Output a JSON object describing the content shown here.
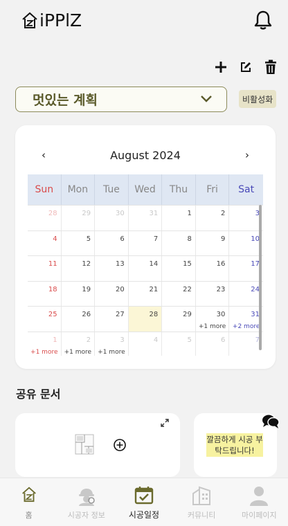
{
  "header": {
    "logo_text": "iPPlZ",
    "logo_icon": "house-logo-icon",
    "notification_icon": "bell-icon"
  },
  "toolbar": {
    "add_icon": "plus-icon",
    "edit_icon": "edit-icon",
    "delete_icon": "trash-icon"
  },
  "plan": {
    "selected": "멋있는 계획",
    "deactivate_label": "비활성화"
  },
  "calendar": {
    "month_label": "August 2024",
    "prev": "‹",
    "next": "›",
    "weekdays": [
      "Sun",
      "Mon",
      "Tue",
      "Wed",
      "Thu",
      "Fri",
      "Sat"
    ],
    "weeks": [
      [
        {
          "d": "28",
          "o": true
        },
        {
          "d": "29",
          "o": true
        },
        {
          "d": "30",
          "o": true
        },
        {
          "d": "31",
          "o": true
        },
        {
          "d": "1"
        },
        {
          "d": "2"
        },
        {
          "d": "3"
        }
      ],
      [
        {
          "d": "4"
        },
        {
          "d": "5"
        },
        {
          "d": "6"
        },
        {
          "d": "7"
        },
        {
          "d": "8"
        },
        {
          "d": "9"
        },
        {
          "d": "10"
        }
      ],
      [
        {
          "d": "11"
        },
        {
          "d": "12"
        },
        {
          "d": "13"
        },
        {
          "d": "14"
        },
        {
          "d": "15"
        },
        {
          "d": "16"
        },
        {
          "d": "17"
        }
      ],
      [
        {
          "d": "18"
        },
        {
          "d": "19"
        },
        {
          "d": "20"
        },
        {
          "d": "21"
        },
        {
          "d": "22"
        },
        {
          "d": "23"
        },
        {
          "d": "24"
        }
      ],
      [
        {
          "d": "25"
        },
        {
          "d": "26"
        },
        {
          "d": "27"
        },
        {
          "d": "28",
          "today": true
        },
        {
          "d": "29"
        },
        {
          "d": "30",
          "more": "+1 more"
        },
        {
          "d": "31",
          "more": "+2 more"
        }
      ],
      [
        {
          "d": "1",
          "o": true,
          "more": "+1 more"
        },
        {
          "d": "2",
          "o": true,
          "more": "+1 more"
        },
        {
          "d": "3",
          "o": true,
          "more": "+1 more"
        },
        {
          "d": "4",
          "o": true
        },
        {
          "d": "5",
          "o": true
        },
        {
          "d": "6",
          "o": true
        },
        {
          "d": "7",
          "o": true
        }
      ]
    ]
  },
  "shared_docs": {
    "title": "공유 문서",
    "note": "깔끔하게 시공 부탁드립니다!",
    "expand_icon": "expand-icon",
    "add_icon": "plus-circle-icon",
    "chat_icon": "chat-bubble-icon"
  },
  "tabs": [
    {
      "label": "홈",
      "icon": "home-icon"
    },
    {
      "label": "시공자 정보",
      "icon": "worker-icon"
    },
    {
      "label": "시공일정",
      "icon": "calendar-check-icon"
    },
    {
      "label": "커뮤니티",
      "icon": "building-icon"
    },
    {
      "label": "마이페이지",
      "icon": "person-icon"
    }
  ],
  "colors": {
    "accent_olive": "#6b6b2e",
    "sunday_red": "#d94b4b",
    "saturday_blue": "#4a4ab8",
    "weekday_header_bg": "#dfe7f3",
    "today_bg": "#fbf6d6",
    "note_yellow": "#f7f2a0"
  }
}
